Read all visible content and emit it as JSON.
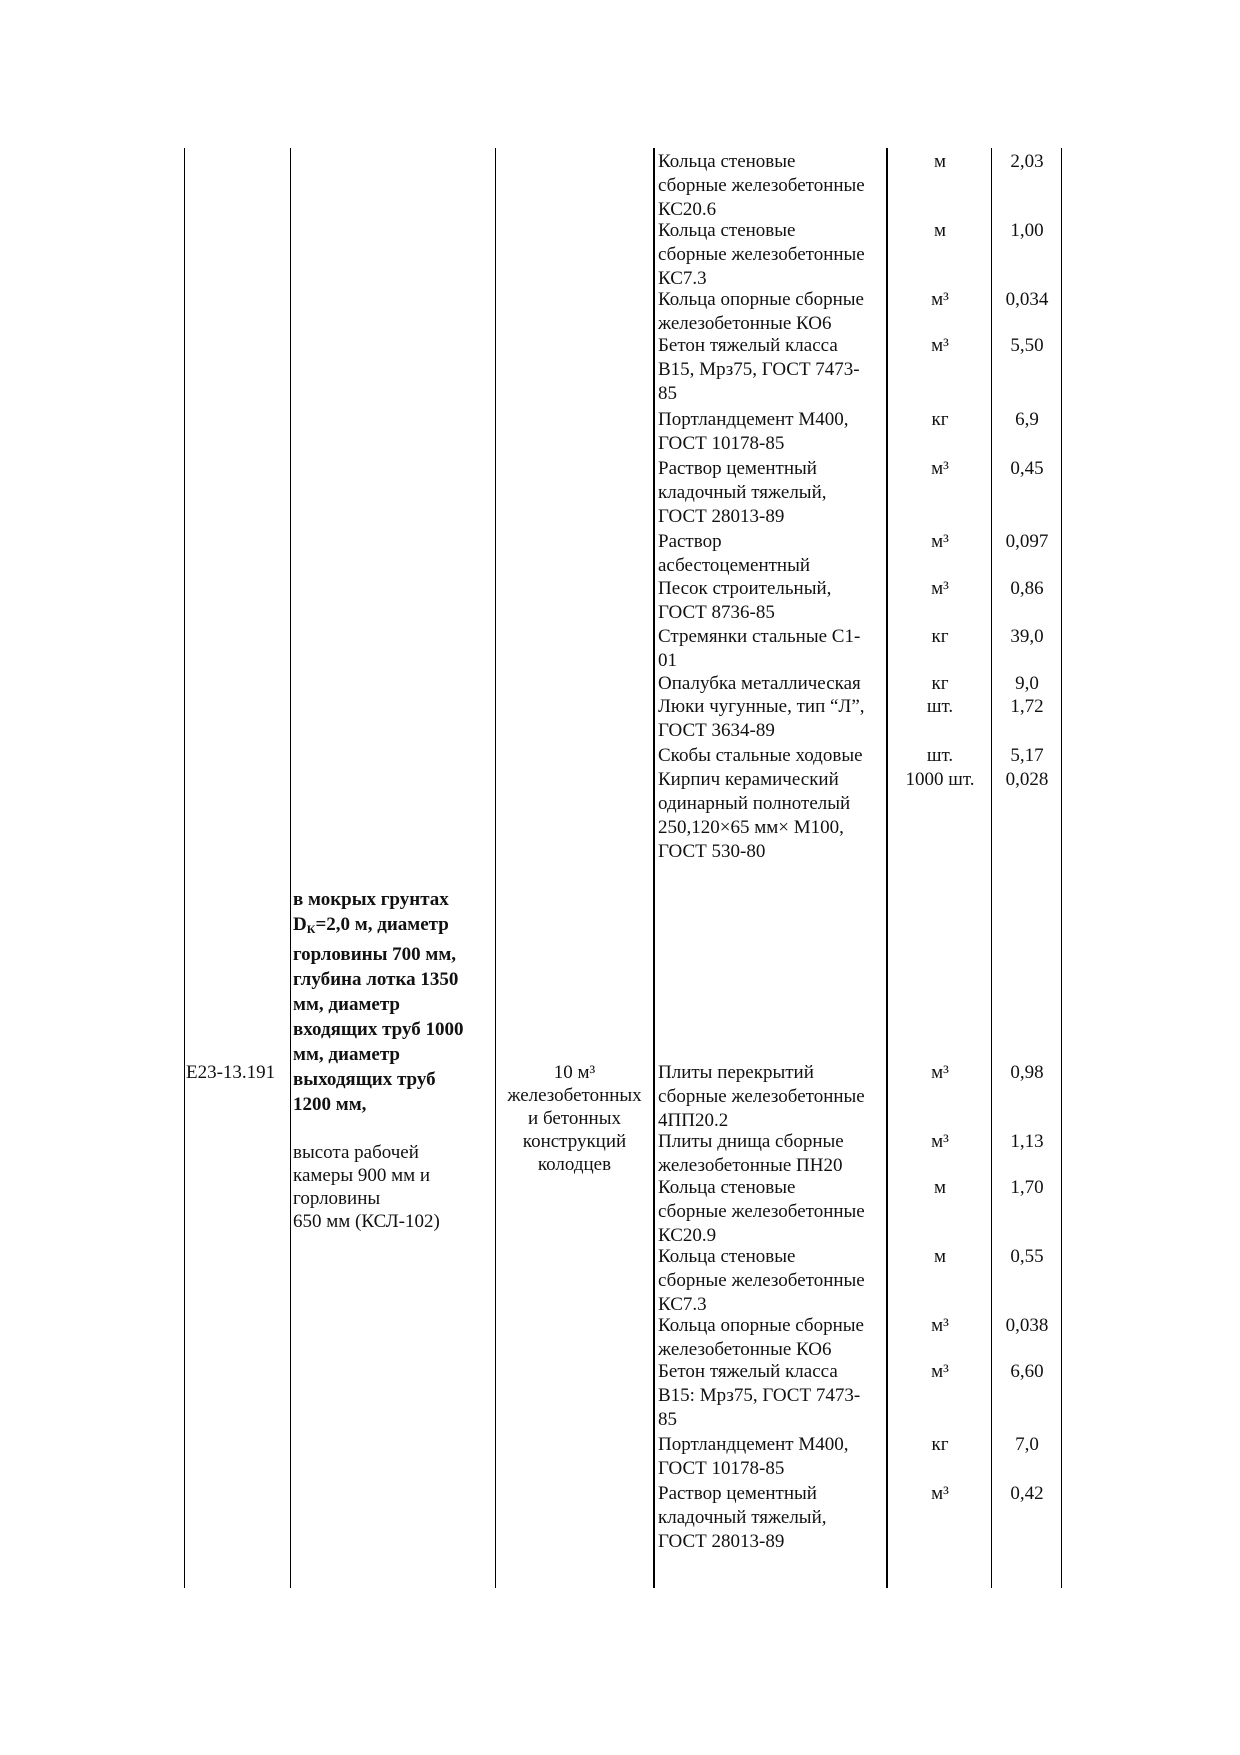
{
  "row": {
    "code": "Е23-13.191",
    "description_bold": [
      "в мокрых грунтах",
      "DК=2,0 м, диаметр",
      "горловины 700 мм,",
      "глубина лотка 1350",
      "мм, диаметр",
      "входящих труб 1000",
      "мм, диаметр",
      "выходящих труб",
      "1200 мм,"
    ],
    "description_normal": "высота рабочей\nкамеры 900 мм и\nгорловины\n650 мм (КСЛ-102)",
    "measure_unit": "10 м³\nжелезобетонных\nи бетонных\nконструкций\nколодцев"
  },
  "resources": [
    {
      "name": "Кольца стеновые\nсборные железобетонные\nКС20.6",
      "unit": "м",
      "qty": "2,03"
    },
    {
      "name": "Кольца стеновые\nсборные железобетонные\nКС7.3",
      "unit": "м",
      "qty": "1,00"
    },
    {
      "name": "Кольца опорные сборные\nжелезобетонные КО6",
      "unit": "м³",
      "qty": "0,034"
    },
    {
      "name": "Бетон тяжелый класса\nВ15, Мрз75, ГОСТ 7473-\n85",
      "unit": "м³",
      "qty": "5,50"
    },
    {
      "name": "Портландцемент М400,\nГОСТ 10178-85",
      "unit": "кг",
      "qty": "6,9"
    },
    {
      "name": "Раствор цементный\nкладочный тяжелый,\nГОСТ 28013-89",
      "unit": "м³",
      "qty": "0,45"
    },
    {
      "name": "Раствор\nасбестоцементный",
      "unit": "м³",
      "qty": "0,097"
    },
    {
      "name": "Песок строительный,\nГОСТ 8736-85",
      "unit": "м³",
      "qty": "0,86"
    },
    {
      "name": "Стремянки стальные С1-\n01",
      "unit": "кг",
      "qty": "39,0"
    },
    {
      "name": "Опалубка металлическая",
      "unit": "кг",
      "qty": "9,0"
    },
    {
      "name": "Люки чугунные, тип “Л”,\nГОСТ 3634-89",
      "unit": "шт.",
      "qty": "1,72"
    },
    {
      "name": "Скобы стальные ходовые",
      "unit": "шт.",
      "qty": "5,17"
    },
    {
      "name": "Кирпич керамический\nодинарный полнотелый\n250,120×65 мм× М100,\nГОСТ 530-80",
      "unit": "1000 шт.",
      "qty": "0,028"
    },
    {
      "name": "Плиты перекрытий\nсборные железобетонные\n4ПП20.2",
      "unit": "м³",
      "qty": "0,98"
    },
    {
      "name": "Плиты днища сборные\nжелезобетонные ПН20",
      "unit": "м³",
      "qty": "1,13"
    },
    {
      "name": "Кольца стеновые\nсборные железобетонные\nКС20.9",
      "unit": "м",
      "qty": "1,70"
    },
    {
      "name": "Кольца стеновые\nсборные железобетонные\nКС7.3",
      "unit": "м",
      "qty": "0,55"
    },
    {
      "name": "Кольца опорные сборные\nжелезобетонные КО6",
      "unit": "м³",
      "qty": "0,038"
    },
    {
      "name": "Бетон тяжелый класса\nВ15: Мрз75, ГОСТ 7473-\n85",
      "unit": "м³",
      "qty": "6,60"
    },
    {
      "name": "Портландцемент М400,\nГОСТ 10178-85",
      "unit": "кг",
      "qty": "7,0"
    },
    {
      "name": "Раствор цементный\nкладочный тяжелый,\nГОСТ 28013-89",
      "unit": "м³",
      "qty": "0,42"
    }
  ]
}
